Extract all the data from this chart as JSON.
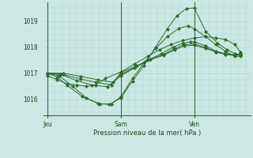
{
  "background_color": "#cce8e4",
  "grid_color": "#aad4d0",
  "line_color": "#2d6a2d",
  "marker_color": "#2d6a2d",
  "xlabel": "Pression niveau de la mer( hPa )",
  "xlabel_color": "#1a4a1a",
  "tick_color": "#1a4a1a",
  "ylim": [
    1015.4,
    1019.7
  ],
  "yticks": [
    1016,
    1017,
    1018,
    1019
  ],
  "xtick_labels": [
    "Jeu",
    "Sam",
    "Ven"
  ],
  "xtick_positions": [
    0.0,
    0.38,
    0.76
  ],
  "vline_positions": [
    0.0,
    0.38,
    0.76
  ],
  "lines": [
    {
      "x": [
        0.0,
        0.05,
        0.1,
        0.15,
        0.2,
        0.25,
        0.3,
        0.38,
        0.45,
        0.52,
        0.58,
        0.64,
        0.7,
        0.76,
        0.82,
        0.87,
        0.92,
        0.97,
        1.0
      ],
      "y": [
        1016.9,
        1016.75,
        1016.6,
        1016.55,
        1016.5,
        1016.55,
        1016.8,
        1017.05,
        1017.35,
        1017.65,
        1017.9,
        1018.1,
        1018.25,
        1018.35,
        1018.4,
        1018.35,
        1018.3,
        1018.1,
        1017.8
      ]
    },
    {
      "x": [
        0.0,
        0.05,
        0.1,
        0.18,
        0.26,
        0.32,
        0.38,
        0.44,
        0.5,
        0.56,
        0.62,
        0.67,
        0.72,
        0.76,
        0.82,
        0.88,
        0.93,
        0.97,
        1.0
      ],
      "y": [
        1017.0,
        1016.85,
        1016.55,
        1016.1,
        1015.85,
        1015.8,
        1016.05,
        1016.7,
        1017.3,
        1018.0,
        1018.7,
        1019.2,
        1019.48,
        1019.5,
        1018.6,
        1018.15,
        1017.9,
        1017.75,
        1017.7
      ]
    },
    {
      "x": [
        0.0,
        0.06,
        0.13,
        0.2,
        0.27,
        0.33,
        0.38,
        0.44,
        0.5,
        0.56,
        0.62,
        0.68,
        0.73,
        0.76,
        0.82,
        0.87,
        0.92,
        0.97,
        1.0
      ],
      "y": [
        1017.0,
        1016.9,
        1016.5,
        1016.05,
        1015.82,
        1015.82,
        1016.1,
        1016.8,
        1017.4,
        1017.95,
        1018.4,
        1018.72,
        1018.82,
        1018.7,
        1018.4,
        1018.1,
        1017.85,
        1017.65,
        1017.65
      ]
    },
    {
      "x": [
        0.0,
        0.07,
        0.15,
        0.23,
        0.31,
        0.38,
        0.45,
        0.52,
        0.59,
        0.65,
        0.7,
        0.74,
        0.76,
        0.82,
        0.87,
        0.92,
        0.97,
        1.0
      ],
      "y": [
        1017.0,
        1016.95,
        1016.72,
        1016.55,
        1016.48,
        1016.9,
        1017.2,
        1017.5,
        1017.75,
        1018.0,
        1018.15,
        1018.2,
        1018.2,
        1018.05,
        1017.85,
        1017.75,
        1017.7,
        1017.75
      ]
    },
    {
      "x": [
        0.0,
        0.08,
        0.17,
        0.25,
        0.33,
        0.38,
        0.46,
        0.53,
        0.6,
        0.66,
        0.71,
        0.76,
        0.82,
        0.87,
        0.92,
        0.97,
        1.0
      ],
      "y": [
        1017.0,
        1016.95,
        1016.78,
        1016.65,
        1016.55,
        1016.95,
        1017.25,
        1017.52,
        1017.72,
        1017.95,
        1018.1,
        1018.12,
        1017.98,
        1017.82,
        1017.72,
        1017.68,
        1017.72
      ]
    },
    {
      "x": [
        0.0,
        0.08,
        0.17,
        0.26,
        0.34,
        0.38,
        0.46,
        0.53,
        0.6,
        0.66,
        0.71,
        0.76,
        0.82,
        0.87,
        0.92,
        0.97,
        1.0
      ],
      "y": [
        1017.0,
        1017.0,
        1016.88,
        1016.75,
        1016.65,
        1017.02,
        1017.28,
        1017.52,
        1017.68,
        1017.9,
        1018.05,
        1018.07,
        1017.95,
        1017.82,
        1017.72,
        1017.68,
        1017.72
      ]
    }
  ],
  "figsize": [
    3.2,
    2.0
  ],
  "dpi": 100
}
